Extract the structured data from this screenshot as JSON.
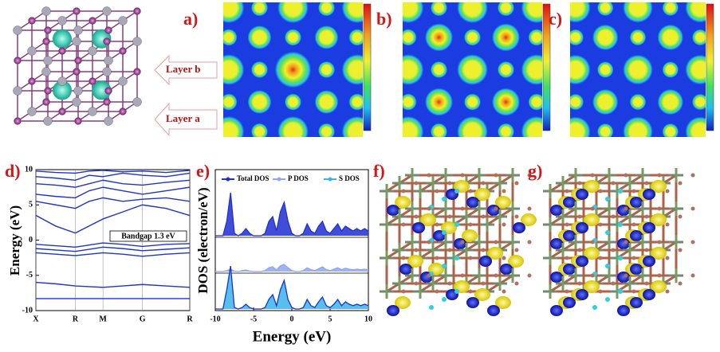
{
  "panel_labels": [
    "a)",
    "b)",
    "c)",
    "d)",
    "e)",
    "f)",
    "g)"
  ],
  "layer_labels": [
    "Layer b",
    "Layer a"
  ],
  "chart_data": [
    {
      "type": "line",
      "ylabel": "Energy (eV)",
      "annotation": "Bandgap 1.3 eV",
      "color": "#1f35c8",
      "x": [
        0,
        0.5,
        1,
        1.35,
        1.7,
        2.2,
        2.7,
        3.3,
        3.9
      ],
      "xlim": [
        0,
        3.9
      ],
      "xticks": [
        {
          "value": 0,
          "label": "X"
        },
        {
          "value": 1,
          "label": "R"
        },
        {
          "value": 1.7,
          "label": "M"
        },
        {
          "value": 2.7,
          "label": "G"
        },
        {
          "value": 3.9,
          "label": "R"
        }
      ],
      "ylim": [
        -10,
        10
      ],
      "yticks": [
        -10,
        -5,
        0,
        5,
        10
      ],
      "series": [
        {
          "values": [
            -8.3,
            -8.3,
            -8.3,
            -8.3,
            -8.3,
            -8.3,
            -8.3,
            -8.3,
            -8.3
          ]
        },
        {
          "values": [
            -6.0,
            -6.2,
            -6.5,
            -6.6,
            -6.7,
            -6.5,
            -6.3,
            -6.5,
            -6.7
          ]
        },
        {
          "values": [
            -1.8,
            -2.0,
            -2.2,
            -2.0,
            -1.8,
            -2.0,
            -2.3,
            -2.0,
            -1.8
          ]
        },
        {
          "values": [
            -1.2,
            -1.4,
            -1.6,
            -1.3,
            -1.0,
            -1.2,
            -1.5,
            -1.3,
            -1.1
          ]
        },
        {
          "values": [
            -0.6,
            -0.8,
            -1.0,
            -0.7,
            -0.4,
            -0.6,
            -0.9,
            -0.6,
            -0.5
          ]
        },
        {
          "values": [
            3.5,
            2.0,
            1.0,
            2.0,
            3.0,
            4.0,
            5.0,
            4.5,
            3.5
          ]
        },
        {
          "values": [
            5.5,
            5.0,
            4.5,
            5.5,
            6.0,
            5.5,
            5.8,
            6.0,
            5.5
          ]
        },
        {
          "values": [
            6.5,
            6.2,
            6.0,
            7.0,
            7.5,
            7.0,
            6.5,
            7.0,
            7.5
          ]
        },
        {
          "values": [
            8.0,
            7.8,
            7.5,
            8.0,
            8.5,
            8.0,
            7.8,
            8.2,
            8.5
          ]
        },
        {
          "values": [
            9.0,
            8.8,
            8.5,
            9.2,
            9.0,
            9.5,
            9.2,
            9.0,
            9.5
          ]
        },
        {
          "values": [
            9.8,
            9.6,
            9.5,
            9.8,
            9.9,
            9.7,
            9.8,
            9.6,
            9.9
          ]
        }
      ]
    },
    {
      "type": "area",
      "xlabel": "Energy (eV)",
      "ylabel": "DOS (electron/eV)",
      "x": [
        -10,
        -9.5,
        -9,
        -8.5,
        -8,
        -7.5,
        -7,
        -6.5,
        -6,
        -5.5,
        -5,
        -4.5,
        -4,
        -3.5,
        -3,
        -2.5,
        -2,
        -1.5,
        -1,
        -0.5,
        0,
        0.5,
        1,
        1.5,
        2,
        2.5,
        3,
        3.5,
        4,
        4.5,
        5,
        5.5,
        6,
        6.5,
        7,
        7.5,
        8,
        8.5,
        9,
        9.5,
        10
      ],
      "xlim": [
        -10,
        10
      ],
      "xticks": [
        -10,
        -5,
        0,
        5,
        10
      ],
      "ylim": [
        0,
        10
      ],
      "series": [
        {
          "name": "Total DOS",
          "color": "#1f2fd0",
          "values": [
            0,
            0,
            0,
            3,
            9,
            0.5,
            0,
            0.5,
            1.5,
            0.5,
            0,
            0,
            0,
            0.5,
            3,
            4,
            1,
            5,
            7,
            3,
            0.5,
            0,
            0,
            0.5,
            2.5,
            1,
            0.5,
            2,
            3,
            1,
            0.5,
            1.5,
            2.5,
            1,
            2,
            1.5,
            1,
            1.5,
            1,
            1.5,
            1
          ]
        },
        {
          "name": "P DOS",
          "color": "#8fa6f0",
          "values": [
            0,
            0,
            0,
            0.2,
            0.5,
            0.1,
            0,
            0.2,
            0.3,
            0.1,
            0,
            0,
            0,
            0.2,
            0.8,
            1,
            0.3,
            1.2,
            1.5,
            0.8,
            0.2,
            0,
            0,
            0.2,
            0.8,
            0.4,
            0.2,
            0.6,
            1,
            0.4,
            0.2,
            0.5,
            0.8,
            0.4,
            0.7,
            0.5,
            0.4,
            0.5,
            0.4,
            0.5,
            0.4
          ]
        },
        {
          "name": "S DOS",
          "color": "#38b4ea",
          "values": [
            0,
            0,
            0,
            4,
            9,
            0.3,
            0,
            0.3,
            1,
            0.3,
            0,
            0,
            0,
            0.3,
            2,
            3,
            0.7,
            4,
            6,
            2,
            0.3,
            0,
            0,
            0.3,
            2,
            0.7,
            0.3,
            1.5,
            2.5,
            0.7,
            0.3,
            1,
            2,
            0.7,
            1.5,
            1,
            0.7,
            1,
            0.7,
            1,
            0.7
          ]
        }
      ]
    }
  ]
}
